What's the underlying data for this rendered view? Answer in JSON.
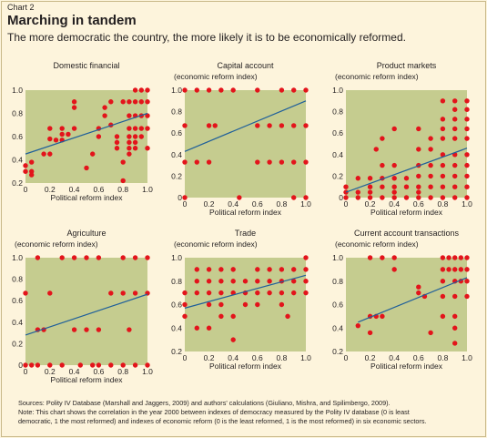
{
  "figure": {
    "label": "Chart 2",
    "title": "Marching in tandem",
    "subtitle": "The more democratic the country, the more likely it is to be economically reformed."
  },
  "notes": {
    "sources": "Sources: Polity IV Database (Marshall and Jaggers, 2009) and authors' calculations (Giuliano, Mishra, and Spilimbergo, 2009).",
    "note_line1": "Note: This chart shows the correlation in the year 2000 between indexes of democracy measured by the Polity IV database (0 is least",
    "note_line2": "democratic, 1 the most reformed) and indexes of economic reform (0 is the least reformed, 1 is the most reformed) in six economic sectors."
  },
  "colors": {
    "panel_bg": "#c5cc8f",
    "point": "#e3141b",
    "trend": "#1f5f9a"
  },
  "chart_data": [
    {
      "type": "scatter",
      "title": "Domestic financial",
      "ylabel": "(economic reform index)",
      "xlabel": "Political reform index",
      "xlim": [
        0,
        1
      ],
      "ylim": [
        0.2,
        1.0
      ],
      "xticks": [
        "0",
        "0.2",
        "0.4",
        "0.6",
        "0.8",
        "1.0"
      ],
      "yticks": [
        "1.0",
        "0.8",
        "0.6",
        "0.4",
        "0.2"
      ],
      "show_ylabel": false,
      "trend": [
        [
          0,
          0.45
        ],
        [
          1,
          0.8
        ]
      ],
      "points": [
        [
          0,
          0.35
        ],
        [
          0,
          0.3
        ],
        [
          0.05,
          0.3
        ],
        [
          0.05,
          0.27
        ],
        [
          0.05,
          0.38
        ],
        [
          0.15,
          0.45
        ],
        [
          0.2,
          0.45
        ],
        [
          0.2,
          0.58
        ],
        [
          0.2,
          0.67
        ],
        [
          0.25,
          0.57
        ],
        [
          0.3,
          0.67
        ],
        [
          0.3,
          0.62
        ],
        [
          0.3,
          0.57
        ],
        [
          0.35,
          0.62
        ],
        [
          0.4,
          0.9
        ],
        [
          0.4,
          0.85
        ],
        [
          0.4,
          0.67
        ],
        [
          0.5,
          0.33
        ],
        [
          0.55,
          0.45
        ],
        [
          0.6,
          0.67
        ],
        [
          0.6,
          0.6
        ],
        [
          0.65,
          0.85
        ],
        [
          0.65,
          0.78
        ],
        [
          0.7,
          0.9
        ],
        [
          0.7,
          0.7
        ],
        [
          0.75,
          0.6
        ],
        [
          0.75,
          0.55
        ],
        [
          0.75,
          0.5
        ],
        [
          0.8,
          0.9
        ],
        [
          0.8,
          0.22
        ],
        [
          0.8,
          0.38
        ],
        [
          0.85,
          0.9
        ],
        [
          0.85,
          0.78
        ],
        [
          0.85,
          0.67
        ],
        [
          0.85,
          0.6
        ],
        [
          0.85,
          0.55
        ],
        [
          0.85,
          0.5
        ],
        [
          0.85,
          0.45
        ],
        [
          0.9,
          1.0
        ],
        [
          0.9,
          0.9
        ],
        [
          0.9,
          0.78
        ],
        [
          0.9,
          0.67
        ],
        [
          0.9,
          0.6
        ],
        [
          0.9,
          0.55
        ],
        [
          0.9,
          0.5
        ],
        [
          0.95,
          1.0
        ],
        [
          0.95,
          0.9
        ],
        [
          0.95,
          0.78
        ],
        [
          0.95,
          0.67
        ],
        [
          0.95,
          0.6
        ],
        [
          1,
          1.0
        ],
        [
          1,
          0.9
        ],
        [
          1,
          0.78
        ],
        [
          1,
          0.67
        ],
        [
          1,
          0.5
        ]
      ]
    },
    {
      "type": "scatter",
      "title": "Capital account",
      "ylabel": "(economic reform index)",
      "xlabel": "Political reform index",
      "xlim": [
        0,
        1
      ],
      "ylim": [
        0,
        1.0
      ],
      "xticks": [
        "0",
        "0.2",
        "0.4",
        "0.6",
        "0.8",
        "1.0"
      ],
      "yticks": [
        "1.0",
        "0.8",
        "0.6",
        "0.4",
        "0.2",
        "0"
      ],
      "show_ylabel": true,
      "trend": [
        [
          0,
          0.43
        ],
        [
          1,
          0.9
        ]
      ],
      "points": [
        [
          0,
          1.0
        ],
        [
          0,
          0.67
        ],
        [
          0,
          0.33
        ],
        [
          0,
          0
        ],
        [
          0.1,
          1.0
        ],
        [
          0.1,
          0.33
        ],
        [
          0.2,
          1.0
        ],
        [
          0.2,
          0.67
        ],
        [
          0.2,
          0.33
        ],
        [
          0.25,
          0.67
        ],
        [
          0.3,
          1.0
        ],
        [
          0.4,
          1.0
        ],
        [
          0.45,
          0
        ],
        [
          0.6,
          1.0
        ],
        [
          0.6,
          0.67
        ],
        [
          0.6,
          0.33
        ],
        [
          0.7,
          0.67
        ],
        [
          0.7,
          0.33
        ],
        [
          0.8,
          1.0
        ],
        [
          0.8,
          0.67
        ],
        [
          0.8,
          0.33
        ],
        [
          0.9,
          1.0
        ],
        [
          0.9,
          0.67
        ],
        [
          0.9,
          0.33
        ],
        [
          0.9,
          0
        ],
        [
          1,
          1.0
        ],
        [
          1,
          0.67
        ],
        [
          1,
          0.33
        ],
        [
          1,
          0
        ]
      ]
    },
    {
      "type": "scatter",
      "title": "Product markets",
      "ylabel": "(economic reform index)",
      "xlabel": "Political reform index",
      "xlim": [
        0,
        1
      ],
      "ylim": [
        0,
        1.0
      ],
      "xticks": [
        "0",
        "0.2",
        "0.4",
        "0.6",
        "0.8",
        "1.0"
      ],
      "yticks": [
        "1.0",
        "0.8",
        "0.6",
        "0.4",
        "0.2",
        "0"
      ],
      "show_ylabel": true,
      "trend": [
        [
          0,
          0.05
        ],
        [
          1,
          0.46
        ]
      ],
      "points": [
        [
          0,
          0
        ],
        [
          0,
          0.05
        ],
        [
          0,
          0.1
        ],
        [
          0.1,
          0
        ],
        [
          0.1,
          0.05
        ],
        [
          0.1,
          0.18
        ],
        [
          0.2,
          0
        ],
        [
          0.2,
          0.05
        ],
        [
          0.2,
          0.1
        ],
        [
          0.2,
          0.18
        ],
        [
          0.25,
          0.45
        ],
        [
          0.3,
          0
        ],
        [
          0.3,
          0.1
        ],
        [
          0.3,
          0.18
        ],
        [
          0.3,
          0.3
        ],
        [
          0.3,
          0.55
        ],
        [
          0.4,
          0
        ],
        [
          0.4,
          0.05
        ],
        [
          0.4,
          0.1
        ],
        [
          0.4,
          0.18
        ],
        [
          0.4,
          0.3
        ],
        [
          0.4,
          0.64
        ],
        [
          0.5,
          0
        ],
        [
          0.5,
          0.1
        ],
        [
          0.5,
          0.18
        ],
        [
          0.6,
          0
        ],
        [
          0.6,
          0.05
        ],
        [
          0.6,
          0.1
        ],
        [
          0.6,
          0.2
        ],
        [
          0.6,
          0.3
        ],
        [
          0.6,
          0.45
        ],
        [
          0.6,
          0.64
        ],
        [
          0.7,
          0
        ],
        [
          0.7,
          0.1
        ],
        [
          0.7,
          0.2
        ],
        [
          0.7,
          0.3
        ],
        [
          0.7,
          0.45
        ],
        [
          0.7,
          0.55
        ],
        [
          0.8,
          0
        ],
        [
          0.8,
          0.1
        ],
        [
          0.8,
          0.2
        ],
        [
          0.8,
          0.3
        ],
        [
          0.8,
          0.4
        ],
        [
          0.8,
          0.55
        ],
        [
          0.8,
          0.64
        ],
        [
          0.8,
          0.73
        ],
        [
          0.8,
          0.9
        ],
        [
          0.9,
          0
        ],
        [
          0.9,
          0.1
        ],
        [
          0.9,
          0.2
        ],
        [
          0.9,
          0.3
        ],
        [
          0.9,
          0.4
        ],
        [
          0.9,
          0.55
        ],
        [
          0.9,
          0.64
        ],
        [
          0.9,
          0.73
        ],
        [
          0.9,
          0.82
        ],
        [
          0.9,
          0.9
        ],
        [
          1,
          0
        ],
        [
          1,
          0.1
        ],
        [
          1,
          0.2
        ],
        [
          1,
          0.3
        ],
        [
          1,
          0.4
        ],
        [
          1,
          0.55
        ],
        [
          1,
          0.64
        ],
        [
          1,
          0.73
        ],
        [
          1,
          0.82
        ],
        [
          1,
          0.9
        ]
      ]
    },
    {
      "type": "scatter",
      "title": "Agriculture",
      "ylabel": "(economic reform index)",
      "xlabel": "Political reform index",
      "xlim": [
        0,
        1
      ],
      "ylim": [
        0,
        1.0
      ],
      "xticks": [
        "0",
        "0.2",
        "0.4",
        "0.6",
        "0.8",
        "1.0"
      ],
      "yticks": [
        "1.0",
        "0.8",
        "0.6",
        "0.4",
        "0.2",
        "0"
      ],
      "show_ylabel": true,
      "trend": [
        [
          0,
          0.28
        ],
        [
          1,
          0.66
        ]
      ],
      "points": [
        [
          0,
          0
        ],
        [
          0,
          0.67
        ],
        [
          0.05,
          0
        ],
        [
          0.1,
          0.33
        ],
        [
          0.1,
          1.0
        ],
        [
          0.1,
          0
        ],
        [
          0.15,
          0.33
        ],
        [
          0.2,
          0
        ],
        [
          0.2,
          0.67
        ],
        [
          0.3,
          1.0
        ],
        [
          0.3,
          0
        ],
        [
          0.4,
          1.0
        ],
        [
          0.4,
          0.33
        ],
        [
          0.45,
          0
        ],
        [
          0.5,
          0.33
        ],
        [
          0.5,
          1.0
        ],
        [
          0.55,
          0
        ],
        [
          0.6,
          0.33
        ],
        [
          0.6,
          1.0
        ],
        [
          0.6,
          0
        ],
        [
          0.7,
          0.67
        ],
        [
          0.7,
          0
        ],
        [
          0.8,
          1.0
        ],
        [
          0.8,
          0.67
        ],
        [
          0.8,
          0
        ],
        [
          0.85,
          0.33
        ],
        [
          0.9,
          1.0
        ],
        [
          0.9,
          0.67
        ],
        [
          0.9,
          0
        ],
        [
          1,
          1.0
        ],
        [
          1,
          0.67
        ],
        [
          1,
          0
        ]
      ]
    },
    {
      "type": "scatter",
      "title": "Trade",
      "ylabel": "(economic reform index)",
      "xlabel": "Political reform index",
      "xlim": [
        0,
        1
      ],
      "ylim": [
        0.2,
        1.0
      ],
      "xticks": [
        "0",
        "0.2",
        "0.4",
        "0.6",
        "0.8",
        "1.0"
      ],
      "yticks": [
        "1.0",
        "0.8",
        "0.6",
        "0.4",
        "0.2"
      ],
      "show_ylabel": true,
      "trend": [
        [
          0,
          0.57
        ],
        [
          1,
          0.85
        ]
      ],
      "points": [
        [
          0,
          0.5
        ],
        [
          0,
          0.6
        ],
        [
          0,
          0.7
        ],
        [
          0.1,
          0.4
        ],
        [
          0.1,
          0.7
        ],
        [
          0.1,
          0.8
        ],
        [
          0.1,
          0.9
        ],
        [
          0.2,
          0.4
        ],
        [
          0.2,
          0.6
        ],
        [
          0.2,
          0.7
        ],
        [
          0.2,
          0.8
        ],
        [
          0.2,
          0.9
        ],
        [
          0.3,
          0.5
        ],
        [
          0.3,
          0.6
        ],
        [
          0.3,
          0.7
        ],
        [
          0.3,
          0.8
        ],
        [
          0.3,
          0.9
        ],
        [
          0.4,
          0.3
        ],
        [
          0.4,
          0.5
        ],
        [
          0.4,
          0.7
        ],
        [
          0.4,
          0.8
        ],
        [
          0.4,
          0.9
        ],
        [
          0.5,
          0.6
        ],
        [
          0.5,
          0.7
        ],
        [
          0.5,
          0.8
        ],
        [
          0.6,
          0.6
        ],
        [
          0.6,
          0.7
        ],
        [
          0.6,
          0.8
        ],
        [
          0.6,
          0.9
        ],
        [
          0.7,
          0.7
        ],
        [
          0.7,
          0.8
        ],
        [
          0.7,
          0.9
        ],
        [
          0.8,
          0.6
        ],
        [
          0.8,
          0.7
        ],
        [
          0.8,
          0.8
        ],
        [
          0.8,
          0.9
        ],
        [
          0.85,
          0.5
        ],
        [
          0.9,
          0.7
        ],
        [
          0.9,
          0.8
        ],
        [
          0.9,
          0.9
        ],
        [
          1,
          0.7
        ],
        [
          1,
          0.8
        ],
        [
          1,
          0.9
        ],
        [
          1,
          1.0
        ]
      ]
    },
    {
      "type": "scatter",
      "title": "Current account transactions",
      "ylabel": "(economic reform index)",
      "xlabel": "Political reform index",
      "xlim": [
        0,
        1
      ],
      "ylim": [
        0.2,
        1.0
      ],
      "xticks": [
        "0",
        "0.2",
        "0.4",
        "0.6",
        "0.8",
        "1.0"
      ],
      "yticks": [
        "1.0",
        "0.8",
        "0.6",
        "0.4",
        "0.2"
      ],
      "show_ylabel": true,
      "trend": [
        [
          0.1,
          0.45
        ],
        [
          1,
          0.83
        ]
      ],
      "points": [
        [
          0.1,
          0.42
        ],
        [
          0.2,
          0.5
        ],
        [
          0.2,
          0.36
        ],
        [
          0.2,
          1.0
        ],
        [
          0.25,
          0.5
        ],
        [
          0.3,
          1.0
        ],
        [
          0.3,
          0.5
        ],
        [
          0.4,
          1.0
        ],
        [
          0.4,
          0.9
        ],
        [
          0.6,
          0.75
        ],
        [
          0.6,
          0.7
        ],
        [
          0.65,
          0.67
        ],
        [
          0.7,
          0.36
        ],
        [
          0.8,
          1.0
        ],
        [
          0.8,
          0.9
        ],
        [
          0.8,
          0.8
        ],
        [
          0.8,
          0.67
        ],
        [
          0.8,
          0.5
        ],
        [
          0.85,
          1.0
        ],
        [
          0.85,
          0.9
        ],
        [
          0.9,
          1.0
        ],
        [
          0.9,
          0.9
        ],
        [
          0.9,
          0.8
        ],
        [
          0.9,
          0.67
        ],
        [
          0.9,
          0.5
        ],
        [
          0.9,
          0.4
        ],
        [
          0.9,
          0.27
        ],
        [
          0.95,
          1.0
        ],
        [
          0.95,
          0.9
        ],
        [
          0.95,
          0.8
        ],
        [
          1,
          1.0
        ],
        [
          1,
          0.9
        ],
        [
          1,
          0.8
        ],
        [
          1,
          0.67
        ]
      ]
    }
  ]
}
